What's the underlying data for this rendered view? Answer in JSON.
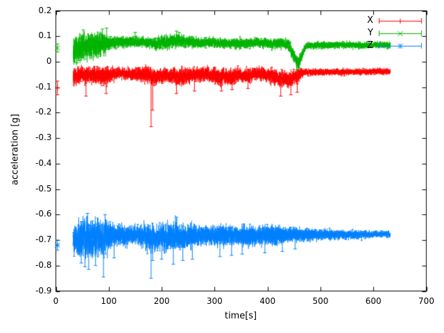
{
  "chart_data": {
    "type": "line",
    "style": "errorbars",
    "title": "",
    "xlabel": "time[s]",
    "ylabel": "acceleration [g]",
    "xlim": [
      0,
      700
    ],
    "ylim": [
      -0.9,
      0.2
    ],
    "x_ticks": [
      0,
      100,
      200,
      300,
      400,
      500,
      600,
      700
    ],
    "y_ticks": [
      0.2,
      0.1,
      0,
      -0.1,
      -0.2,
      -0.3,
      -0.4,
      -0.5,
      -0.6,
      -0.7,
      -0.8,
      -0.9
    ],
    "grid": false,
    "background": "#ffffff",
    "legend": {
      "position": "top-right",
      "entries": [
        "X",
        "Y",
        "Z"
      ]
    },
    "series": [
      {
        "name": "X",
        "color": "#ff0000",
        "marker": "plus",
        "first_point": {
          "t": 3,
          "y": -0.103,
          "err": 0.027
        },
        "band": {
          "t_start": 33,
          "t_end": 632,
          "mean": [
            [
              33,
              -0.06
            ],
            [
              55,
              -0.05
            ],
            [
              90,
              -0.055
            ],
            [
              120,
              -0.045
            ],
            [
              150,
              -0.05
            ],
            [
              175,
              -0.05
            ],
            [
              185,
              -0.06
            ],
            [
              210,
              -0.05
            ],
            [
              235,
              -0.06
            ],
            [
              255,
              -0.05
            ],
            [
              285,
              -0.05
            ],
            [
              310,
              -0.06
            ],
            [
              330,
              -0.06
            ],
            [
              345,
              -0.05
            ],
            [
              365,
              -0.055
            ],
            [
              385,
              -0.045
            ],
            [
              415,
              -0.06
            ],
            [
              435,
              -0.07
            ],
            [
              452,
              -0.06
            ],
            [
              468,
              -0.042
            ],
            [
              550,
              -0.04
            ],
            [
              632,
              -0.038
            ]
          ],
          "halfwidth": [
            [
              33,
              0.034
            ],
            [
              60,
              0.028
            ],
            [
              90,
              0.034
            ],
            [
              115,
              0.018
            ],
            [
              150,
              0.022
            ],
            [
              180,
              0.03
            ],
            [
              210,
              0.026
            ],
            [
              240,
              0.032
            ],
            [
              270,
              0.024
            ],
            [
              305,
              0.03
            ],
            [
              335,
              0.028
            ],
            [
              365,
              0.024
            ],
            [
              395,
              0.022
            ],
            [
              425,
              0.03
            ],
            [
              455,
              0.028
            ],
            [
              468,
              0.013
            ],
            [
              560,
              0.011
            ],
            [
              632,
              0.011
            ]
          ]
        },
        "spikes": [
          [
            57,
            -0.135
          ],
          [
            95,
            -0.125
          ],
          [
            180,
            -0.255
          ],
          [
            183,
            -0.19
          ],
          [
            228,
            -0.125
          ],
          [
            262,
            -0.115
          ],
          [
            313,
            -0.115
          ],
          [
            333,
            -0.11
          ],
          [
            363,
            -0.105
          ],
          [
            425,
            -0.135
          ],
          [
            444,
            -0.13
          ],
          [
            456,
            -0.12
          ]
        ]
      },
      {
        "name": "Y",
        "color": "#00b400",
        "marker": "cross",
        "first_point": {
          "t": 3,
          "y": 0.054,
          "err": 0.016
        },
        "band": {
          "t_start": 33,
          "t_end": 632,
          "mean": [
            [
              33,
              0.05
            ],
            [
              55,
              0.06
            ],
            [
              75,
              0.065
            ],
            [
              100,
              0.072
            ],
            [
              130,
              0.08
            ],
            [
              160,
              0.078
            ],
            [
              190,
              0.07
            ],
            [
              222,
              0.082
            ],
            [
              240,
              0.08
            ],
            [
              265,
              0.075
            ],
            [
              300,
              0.075
            ],
            [
              340,
              0.07
            ],
            [
              380,
              0.073
            ],
            [
              420,
              0.072
            ],
            [
              440,
              0.068
            ],
            [
              450,
              0.02
            ],
            [
              458,
              -0.002
            ],
            [
              464,
              0.02
            ],
            [
              472,
              0.062
            ],
            [
              500,
              0.066
            ],
            [
              560,
              0.066
            ],
            [
              632,
              0.065
            ]
          ],
          "halfwidth": [
            [
              33,
              0.048
            ],
            [
              70,
              0.045
            ],
            [
              90,
              0.04
            ],
            [
              105,
              0.022
            ],
            [
              140,
              0.02
            ],
            [
              175,
              0.018
            ],
            [
              215,
              0.026
            ],
            [
              245,
              0.022
            ],
            [
              280,
              0.018
            ],
            [
              330,
              0.018
            ],
            [
              380,
              0.018
            ],
            [
              435,
              0.018
            ],
            [
              452,
              0.025
            ],
            [
              462,
              0.022
            ],
            [
              472,
              0.013
            ],
            [
              560,
              0.012
            ],
            [
              632,
              0.012
            ]
          ]
        },
        "spikes": [
          [
            40,
            -0.005
          ],
          [
            52,
            0.125
          ],
          [
            88,
            0.128
          ],
          [
            96,
            0.132
          ],
          [
            150,
            0.115
          ],
          [
            228,
            0.12
          ],
          [
            233,
            0.115
          ],
          [
            455,
            -0.032
          ],
          [
            460,
            -0.025
          ]
        ]
      },
      {
        "name": "Z",
        "color": "#0080ff",
        "marker": "star",
        "first_point": {
          "t": 3,
          "y": -0.72,
          "err": 0.02
        },
        "band": {
          "t_start": 33,
          "t_end": 632,
          "mean": [
            [
              33,
              -0.688
            ],
            [
              60,
              -0.7
            ],
            [
              85,
              -0.695
            ],
            [
              110,
              -0.682
            ],
            [
              160,
              -0.683
            ],
            [
              185,
              -0.69
            ],
            [
              230,
              -0.685
            ],
            [
              280,
              -0.682
            ],
            [
              350,
              -0.682
            ],
            [
              420,
              -0.68
            ],
            [
              500,
              -0.679
            ],
            [
              632,
              -0.677
            ]
          ],
          "halfwidth": [
            [
              33,
              0.055
            ],
            [
              55,
              0.072
            ],
            [
              80,
              0.068
            ],
            [
              95,
              0.06
            ],
            [
              110,
              0.038
            ],
            [
              150,
              0.033
            ],
            [
              180,
              0.05
            ],
            [
              195,
              0.04
            ],
            [
              215,
              0.052
            ],
            [
              235,
              0.046
            ],
            [
              258,
              0.042
            ],
            [
              285,
              0.032
            ],
            [
              315,
              0.04
            ],
            [
              340,
              0.033
            ],
            [
              365,
              0.038
            ],
            [
              390,
              0.033
            ],
            [
              415,
              0.037
            ],
            [
              440,
              0.028
            ],
            [
              465,
              0.024
            ],
            [
              500,
              0.02
            ],
            [
              545,
              0.016
            ],
            [
              590,
              0.013
            ],
            [
              632,
              0.011
            ]
          ]
        },
        "spikes": [
          [
            48,
            -0.79
          ],
          [
            55,
            -0.805
          ],
          [
            62,
            -0.815
          ],
          [
            75,
            -0.8
          ],
          [
            90,
            -0.845
          ],
          [
            93,
            -0.6
          ],
          [
            60,
            -0.595
          ],
          [
            110,
            -0.77
          ],
          [
            180,
            -0.85
          ],
          [
            183,
            -0.78
          ],
          [
            200,
            -0.775
          ],
          [
            222,
            -0.795
          ],
          [
            228,
            -0.61
          ],
          [
            240,
            -0.78
          ],
          [
            258,
            -0.775
          ],
          [
            310,
            -0.765
          ],
          [
            332,
            -0.76
          ],
          [
            352,
            -0.755
          ],
          [
            395,
            -0.75
          ],
          [
            428,
            -0.745
          ],
          [
            452,
            -0.735
          ]
        ]
      }
    ]
  }
}
